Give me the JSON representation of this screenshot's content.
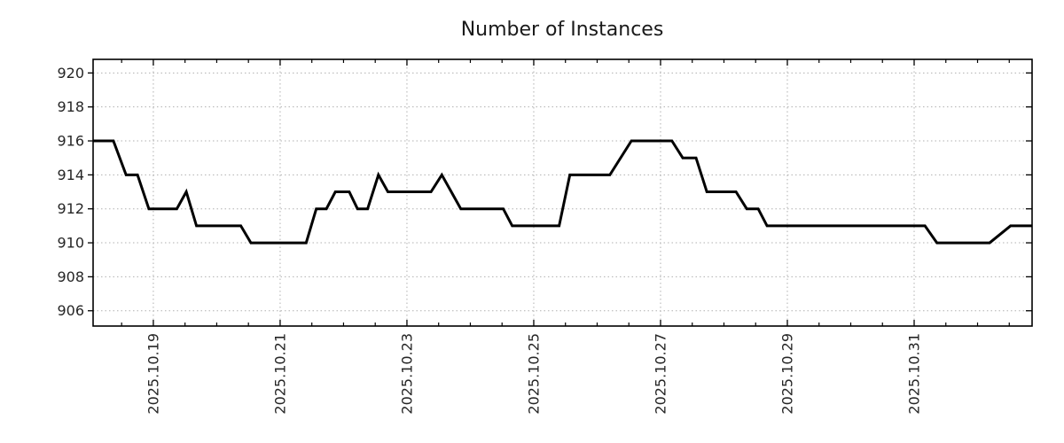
{
  "title": "Number of Instances",
  "chart_data": {
    "type": "line",
    "title": "Number of Instances",
    "series_name": "number-of-instances",
    "line_color": "#000000",
    "line_width": 3,
    "background": "#ffffff",
    "grid": true,
    "grid_color": "#b0b0b0",
    "axis_color": "#000000",
    "legend": "none",
    "x_axis": {
      "unit": "date-october-day-number",
      "lim": [
        18.05,
        32.86
      ],
      "major_ticks": [
        {
          "t": 19,
          "label": "2025.10.19"
        },
        {
          "t": 21,
          "label": "2025.10.21"
        },
        {
          "t": 23,
          "label": "2025.10.23"
        },
        {
          "t": 25,
          "label": "2025.10.25"
        },
        {
          "t": 27,
          "label": "2025.10.27"
        },
        {
          "t": 29,
          "label": "2025.10.29"
        },
        {
          "t": 31,
          "label": "2025.10.31"
        }
      ],
      "minor_step": 0.5
    },
    "y_axis": {
      "lim": [
        905.1,
        920.8
      ],
      "ticks": [
        906,
        908,
        910,
        912,
        914,
        916,
        918,
        920
      ]
    },
    "points": [
      [
        18.05,
        916
      ],
      [
        18.37,
        916
      ],
      [
        18.57,
        914
      ],
      [
        18.75,
        914
      ],
      [
        18.93,
        912
      ],
      [
        19.37,
        912
      ],
      [
        19.52,
        913
      ],
      [
        19.68,
        911
      ],
      [
        20.38,
        911
      ],
      [
        20.54,
        910
      ],
      [
        21.41,
        910
      ],
      [
        21.57,
        912
      ],
      [
        21.73,
        912
      ],
      [
        21.87,
        913
      ],
      [
        22.09,
        913
      ],
      [
        22.22,
        912
      ],
      [
        22.38,
        912
      ],
      [
        22.55,
        914
      ],
      [
        22.7,
        913
      ],
      [
        23.38,
        913
      ],
      [
        23.55,
        914
      ],
      [
        23.85,
        912
      ],
      [
        24.52,
        912
      ],
      [
        24.66,
        911
      ],
      [
        25.4,
        911
      ],
      [
        25.57,
        914
      ],
      [
        26.2,
        914
      ],
      [
        26.54,
        916
      ],
      [
        27.18,
        916
      ],
      [
        27.35,
        915
      ],
      [
        27.56,
        915
      ],
      [
        27.73,
        913
      ],
      [
        28.19,
        913
      ],
      [
        28.36,
        912
      ],
      [
        28.54,
        912
      ],
      [
        28.68,
        911
      ],
      [
        31.17,
        911
      ],
      [
        31.36,
        910
      ],
      [
        32.19,
        910
      ],
      [
        32.52,
        911
      ],
      [
        32.86,
        911
      ]
    ]
  }
}
